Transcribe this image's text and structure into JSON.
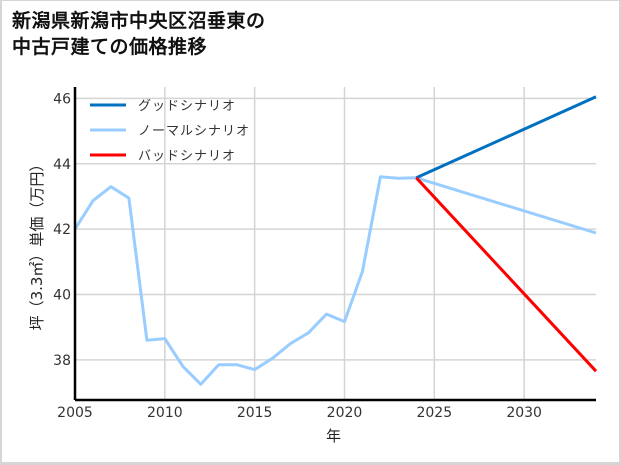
{
  "title": {
    "line1": "新潟県新潟市中央区沼垂東の",
    "line2": "中古戸建ての価格推移"
  },
  "chart_data": {
    "type": "line",
    "title": "新潟県新潟市中央区沼垂東の中古戸建ての価格推移",
    "xlabel": "年",
    "ylabel": "坪（3.3㎡）単価（万円）",
    "xlim": [
      2005,
      2034
    ],
    "ylim": [
      36.77,
      46.35
    ],
    "xticks": [
      2005,
      2010,
      2015,
      2020,
      2025,
      2030
    ],
    "yticks": [
      38,
      40,
      42,
      44,
      46
    ],
    "grid": true,
    "legend_position": "upper left",
    "series": [
      {
        "name": "ノーマルシナリオ",
        "color": "#99ccff",
        "x": [
          2005,
          2006,
          2007,
          2008,
          2009,
          2010,
          2011,
          2012,
          2013,
          2014,
          2015,
          2016,
          2017,
          2018,
          2019,
          2020,
          2021,
          2022,
          2023,
          2024,
          2034
        ],
        "values": [
          42.0,
          42.87,
          43.3,
          42.95,
          38.6,
          38.65,
          37.8,
          37.25,
          37.85,
          37.85,
          37.7,
          38.05,
          38.5,
          38.83,
          39.4,
          39.17,
          40.7,
          43.6,
          43.56,
          43.57,
          41.88
        ]
      },
      {
        "name": "グッドシナリオ",
        "color": "#0070c0",
        "x": [
          2024,
          2034
        ],
        "values": [
          43.57,
          46.05
        ]
      },
      {
        "name": "バッドシナリオ",
        "color": "#ff0000",
        "x": [
          2024,
          2034
        ],
        "values": [
          43.57,
          37.65
        ]
      }
    ]
  },
  "legend": [
    {
      "label": "グッドシナリオ",
      "color": "#0070c0"
    },
    {
      "label": "ノーマルシナリオ",
      "color": "#99ccff"
    },
    {
      "label": "バッドシナリオ",
      "color": "#ff0000"
    }
  ]
}
